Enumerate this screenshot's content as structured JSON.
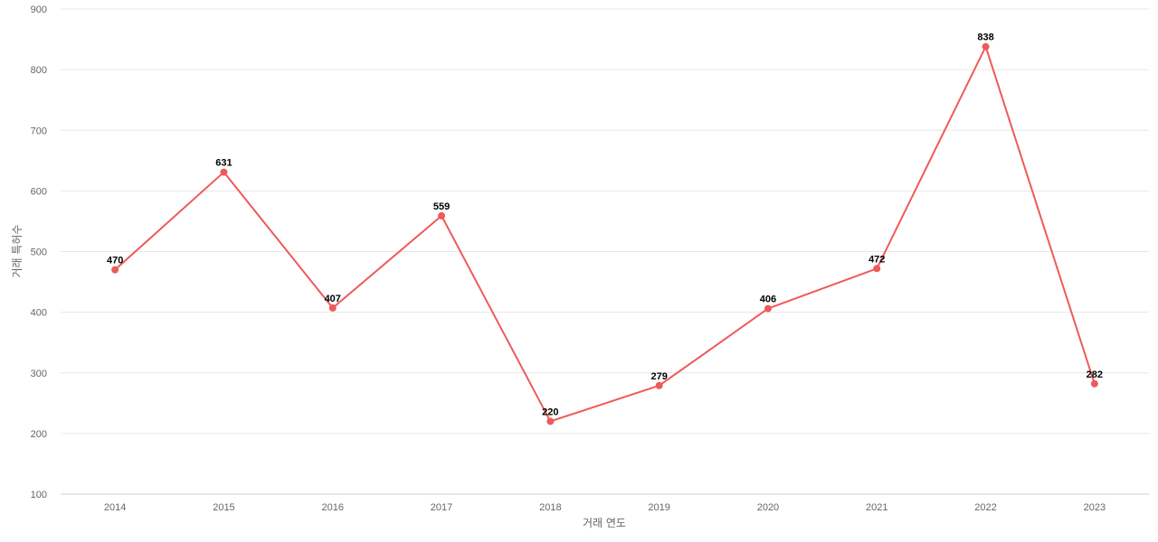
{
  "chart_data": {
    "type": "line",
    "title": "",
    "xlabel": "거래 연도",
    "ylabel": "거래 특허수",
    "categories": [
      "2014",
      "2015",
      "2016",
      "2017",
      "2018",
      "2019",
      "2020",
      "2021",
      "2022",
      "2023"
    ],
    "series": [
      {
        "values": [
          470,
          631,
          407,
          559,
          220,
          279,
          406,
          472,
          838,
          282
        ],
        "color": "#ee5a5a"
      }
    ],
    "ylim": [
      100,
      900
    ],
    "yticks": [
      100,
      200,
      300,
      400,
      500,
      600,
      700,
      800,
      900
    ],
    "grid": true,
    "data_labels": true,
    "legend": "none"
  }
}
